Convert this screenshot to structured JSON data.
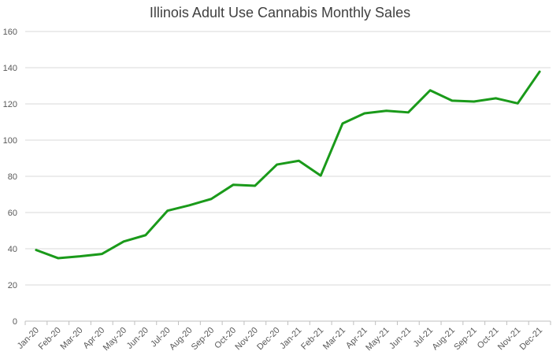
{
  "chart_data": {
    "type": "line",
    "title": "Illinois Adult Use Cannabis Monthly Sales",
    "xlabel": "",
    "ylabel": "",
    "ylim": [
      0,
      160
    ],
    "yticks": [
      "0",
      "20",
      "40",
      "60",
      "80",
      "100",
      "120",
      "140",
      "160"
    ],
    "grid": true,
    "legend": "none",
    "categories": [
      "Jan-20",
      "Feb-20",
      "Mar-20",
      "Apr-20",
      "May-20",
      "Jun-20",
      "Jul-20",
      "Aug-20",
      "Sep-20",
      "Oct-20",
      "Nov-20",
      "Dec-20",
      "Jan-21",
      "Feb-21",
      "Mar-21",
      "Apr-21",
      "May-21",
      "Jun-21",
      "Jul-21",
      "Aug-21",
      "Sep-21",
      "Oct-21",
      "Nov-21",
      "Dec-21"
    ],
    "series": [
      {
        "values": [
          39.3,
          34.8,
          35.8,
          37.1,
          44.0,
          47.5,
          61.0,
          64.0,
          67.5,
          75.3,
          74.8,
          86.5,
          88.6,
          80.4,
          109.2,
          114.8,
          116.2,
          115.3,
          127.5,
          121.8,
          121.3,
          123.1,
          120.3,
          137.8
        ],
        "color": "#1a9a1a"
      }
    ]
  }
}
